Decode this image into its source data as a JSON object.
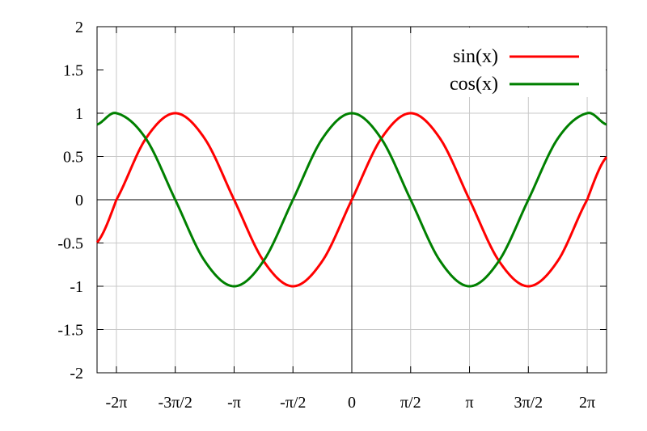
{
  "chart_data": {
    "type": "line",
    "title": "",
    "xlabel": "",
    "ylabel": "",
    "xlim": [
      -6.8,
      6.8
    ],
    "ylim": [
      -2,
      2
    ],
    "grid": true,
    "legend": "top-right",
    "x_ticks": [
      {
        "value": -6.283185,
        "label": "-2π"
      },
      {
        "value": -4.712389,
        "label": "-3π/2"
      },
      {
        "value": -3.141593,
        "label": "-π"
      },
      {
        "value": -1.570796,
        "label": "-π/2"
      },
      {
        "value": 0,
        "label": "0"
      },
      {
        "value": 1.570796,
        "label": "π/2"
      },
      {
        "value": 3.141593,
        "label": "π"
      },
      {
        "value": 4.712389,
        "label": "3π/2"
      },
      {
        "value": 6.283185,
        "label": "2π"
      }
    ],
    "y_ticks": [
      {
        "value": 2,
        "label": "2"
      },
      {
        "value": 1.5,
        "label": "1.5"
      },
      {
        "value": 1,
        "label": "1"
      },
      {
        "value": 0.5,
        "label": "0.5"
      },
      {
        "value": 0,
        "label": "0"
      },
      {
        "value": -0.5,
        "label": "-0.5"
      },
      {
        "value": -1,
        "label": "-1"
      },
      {
        "value": -1.5,
        "label": "-1.5"
      },
      {
        "value": -2,
        "label": "-2"
      }
    ],
    "series": [
      {
        "name": "sin(x)",
        "color": "#ff0000",
        "x": [
          -6.8,
          -6.283185,
          -5.497787,
          -4.712389,
          -3.926991,
          -3.141593,
          -2.356194,
          -1.570796,
          -0.785398,
          0,
          0.785398,
          1.570796,
          2.356194,
          3.141593,
          3.926991,
          4.712389,
          5.497787,
          6.283185,
          6.8
        ],
        "y": [
          -0.494,
          0,
          0.707,
          1,
          0.707,
          0,
          -0.707,
          -1,
          -0.707,
          0,
          0.707,
          1,
          0.707,
          0,
          -0.707,
          -1,
          -0.707,
          0,
          0.494
        ]
      },
      {
        "name": "cos(x)",
        "color": "#008000",
        "x": [
          -6.8,
          -6.283185,
          -5.497787,
          -4.712389,
          -3.926991,
          -3.141593,
          -2.356194,
          -1.570796,
          -0.785398,
          0,
          0.785398,
          1.570796,
          2.356194,
          3.141593,
          3.926991,
          4.712389,
          5.497787,
          6.283185,
          6.8
        ],
        "y": [
          0.869,
          1,
          0.707,
          0,
          -0.707,
          -1,
          -0.707,
          0,
          0.707,
          1,
          0.707,
          0,
          -0.707,
          -1,
          -0.707,
          0,
          0.707,
          1,
          0.869
        ]
      }
    ]
  }
}
